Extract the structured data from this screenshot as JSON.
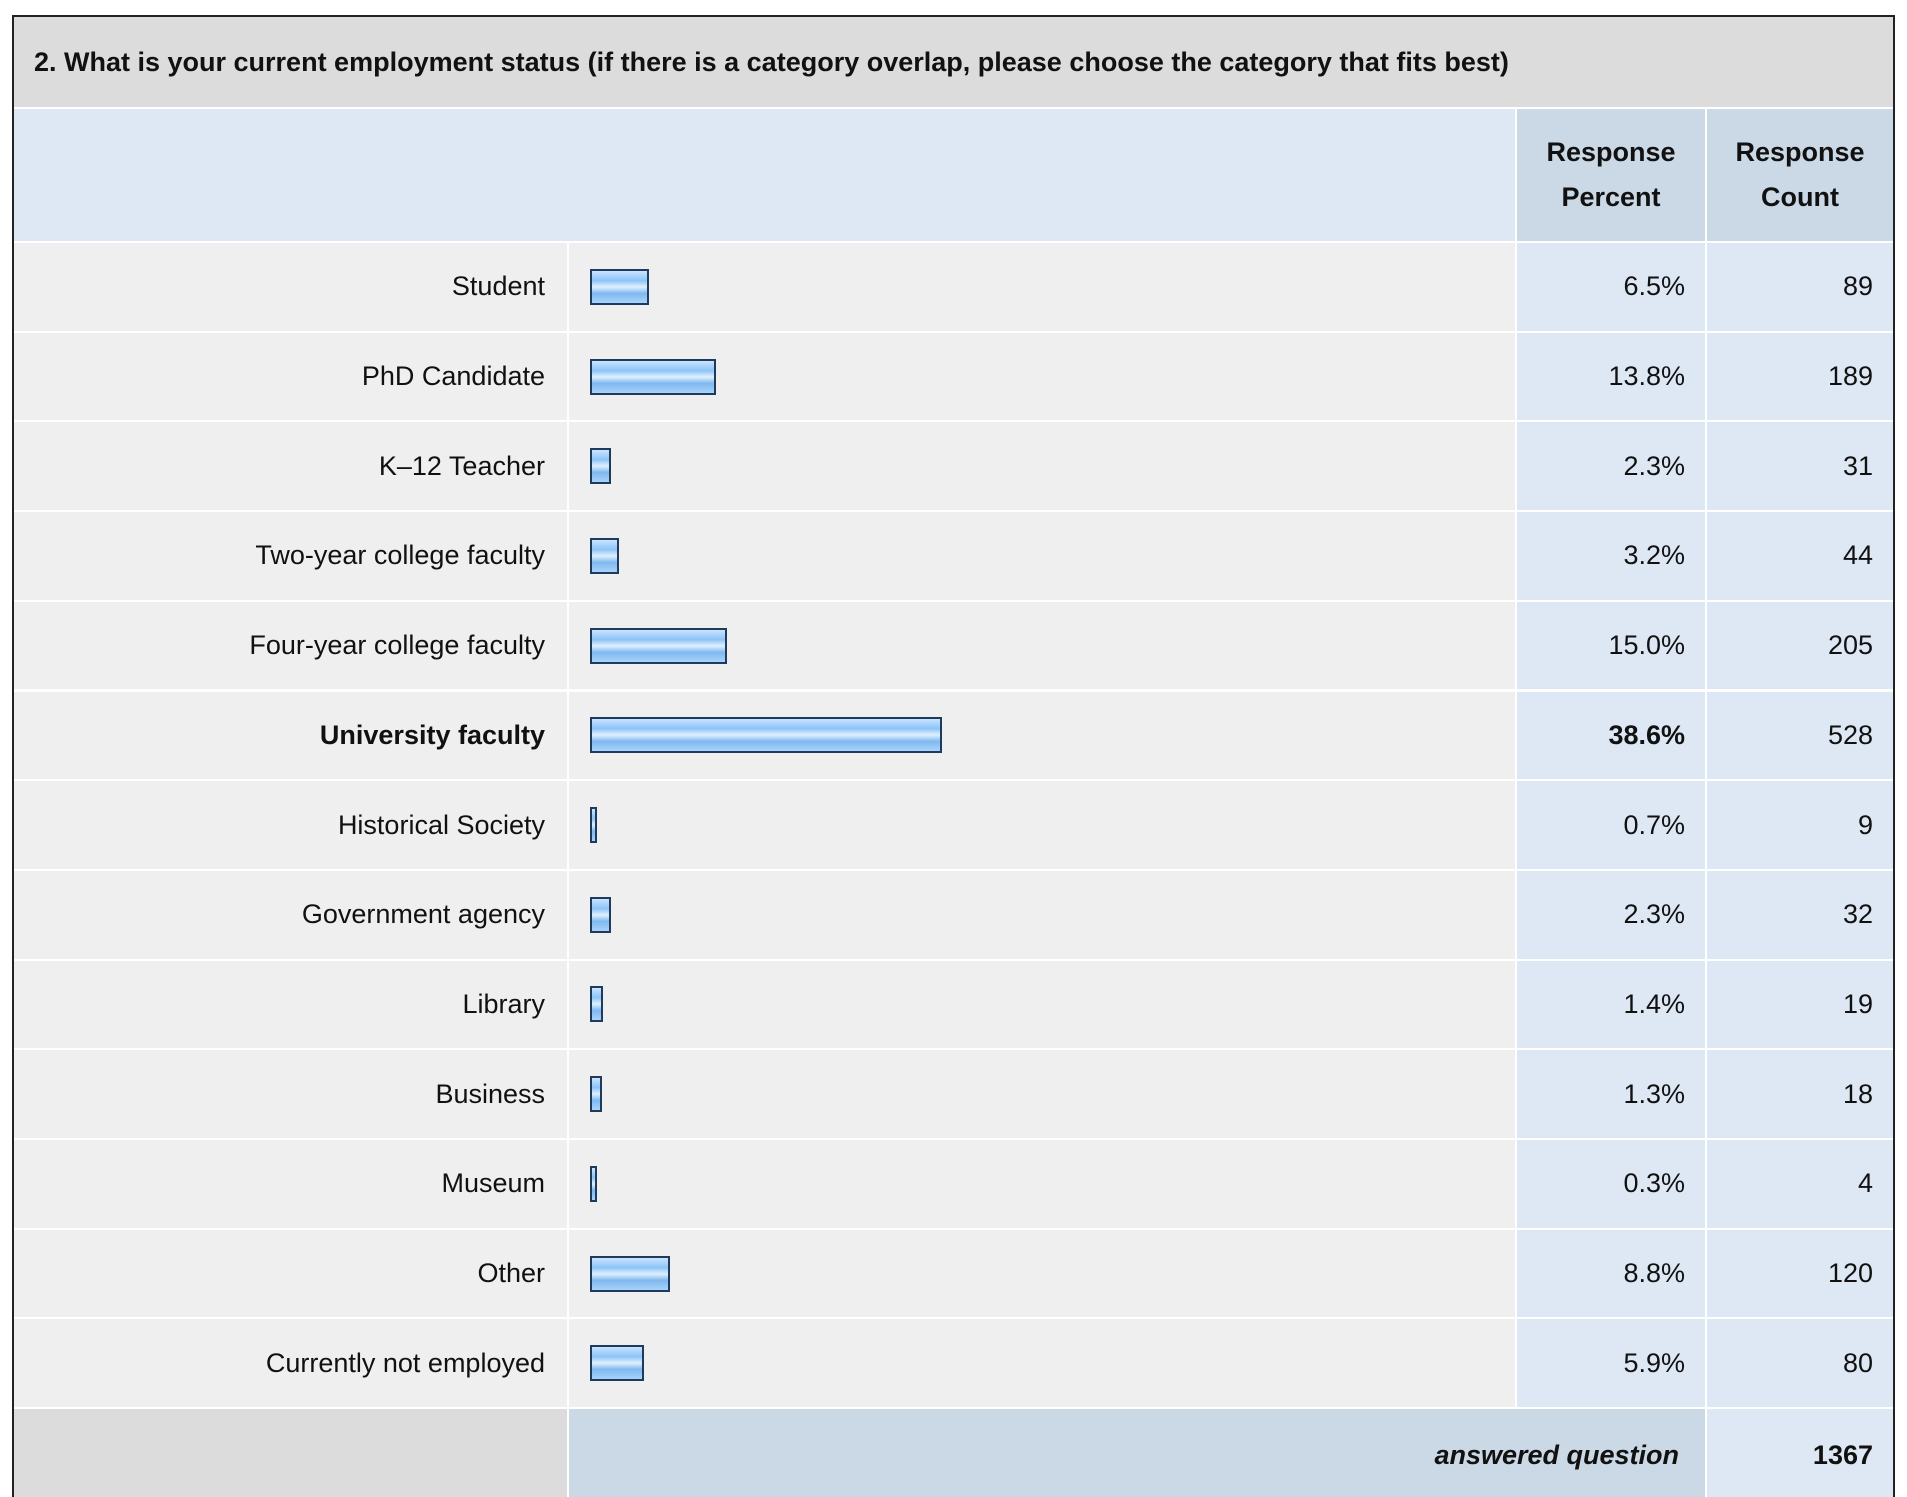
{
  "chart_data": {
    "type": "bar",
    "title": "2. What is your current employment status (if there is a category overlap, please choose the category that fits best)",
    "column_headers": [
      "Response Percent",
      "Response Count"
    ],
    "categories": [
      "Student",
      "PhD Candidate",
      "K–12 Teacher",
      "Two-year college faculty",
      "Four-year college faculty",
      "University faculty",
      "Historical Society",
      "Government agency",
      "Library",
      "Business",
      "Museum",
      "Other",
      "Currently not employed"
    ],
    "values": [
      6.5,
      13.8,
      2.3,
      3.2,
      15.0,
      38.6,
      0.7,
      2.3,
      1.4,
      1.3,
      0.3,
      8.8,
      5.9
    ],
    "value_labels": [
      "6.5%",
      "13.8%",
      "2.3%",
      "3.2%",
      "15.0%",
      "38.6%",
      "0.7%",
      "2.3%",
      "1.4%",
      "1.3%",
      "0.3%",
      "8.8%",
      "5.9%"
    ],
    "counts": [
      89,
      189,
      31,
      44,
      205,
      528,
      9,
      32,
      19,
      18,
      4,
      120,
      80
    ],
    "footer_label": "answered question",
    "total": 1367
  }
}
